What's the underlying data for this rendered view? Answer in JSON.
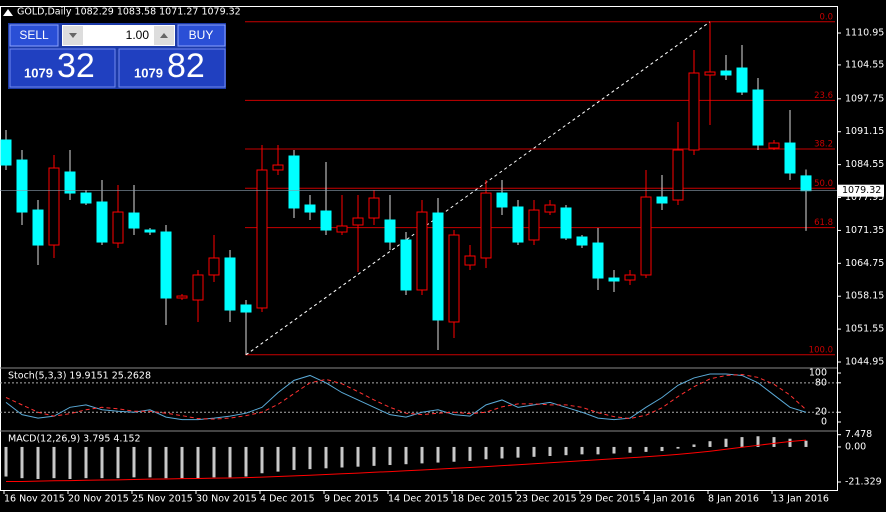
{
  "chart_data": [
    {
      "type": "candlestick",
      "title": "GOLD,Daily  1082.29 1083.58 1071.27 1079.32",
      "categories": [
        "16 Nov 2015",
        null,
        null,
        null,
        "20 Nov 2015",
        null,
        null,
        null,
        "25 Nov 2015",
        null,
        null,
        null,
        "30 Nov 2015",
        null,
        null,
        null,
        "4 Dec 2015",
        null,
        null,
        null,
        "9 Dec 2015",
        null,
        null,
        null,
        "14 Dec 2015",
        null,
        null,
        null,
        "18 Dec 2015",
        null,
        null,
        null,
        "23 Dec 2015",
        null,
        null,
        null,
        "29 Dec 2015",
        null,
        null,
        null,
        "4 Jan 2016",
        null,
        null,
        null,
        "8 Jan 2016",
        null,
        null,
        null,
        "13 Jan 2016",
        null,
        null
      ],
      "open": [
        1089.49,
        1085.47,
        1075.44,
        1068.42,
        1083.07,
        1078.85,
        1077.05,
        1068.82,
        1074.84,
        1071.43,
        1071.03,
        1057.79,
        1057.39,
        1062.41,
        1065.82,
        1056.39,
        1055.79,
        1083.47,
        1086.28,
        1076.45,
        1075.24,
        1071.03,
        1072.44,
        1073.84,
        1073.44,
        1069.43,
        1059.4,
        1074.84,
        1052.98,
        1064.41,
        1065.82,
        1078.85,
        1076.05,
        1069.43,
        1075.04,
        1075.85,
        1070.03,
        1068.82,
        1061.8,
        1061.4,
        1062.41,
        1078.05,
        1077.45,
        1087.48,
        1102.53,
        1103.33,
        1103.93,
        1099.52,
        1087.88,
        1088.88,
        1082.29
      ],
      "high": [
        1091.49,
        1087.48,
        1077.45,
        1086.48,
        1087.48,
        1079.46,
        1081.46,
        1080.46,
        1080.46,
        1071.83,
        1072.44,
        1058.6,
        1063.41,
        1070.43,
        1067.42,
        1057.39,
        1088.48,
        1088.48,
        1087.48,
        1078.45,
        1085.07,
        1078.45,
        1078.45,
        1079.46,
        1078.45,
        1071.03,
        1077.45,
        1077.85,
        1071.43,
        1068.42,
        1081.46,
        1081.46,
        1077.45,
        1077.45,
        1077.45,
        1076.45,
        1070.43,
        1071.83,
        1063.41,
        1063.41,
        1083.47,
        1082.46,
        1093.1,
        1107.54,
        1113.2,
        1106.54,
        1108.54,
        1101.92,
        1089.49,
        1095.5,
        1083.58
      ],
      "low": [
        1083.47,
        1072.44,
        1064.41,
        1065.82,
        1077.45,
        1076.45,
        1068.42,
        1067.82,
        1070.43,
        1070.43,
        1052.38,
        1057.39,
        1052.98,
        1061.0,
        1052.98,
        1046.4,
        1054.98,
        1082.46,
        1073.84,
        1073.44,
        1070.43,
        1070.43,
        1063.01,
        1072.44,
        1067.42,
        1058.39,
        1058.39,
        1047.36,
        1049.77,
        1063.41,
        1063.81,
        1074.44,
        1068.42,
        1068.42,
        1074.44,
        1069.43,
        1067.82,
        1059.4,
        1058.99,
        1060.4,
        1061.8,
        1075.44,
        1076.45,
        1086.48,
        1092.49,
        1101.52,
        1098.51,
        1087.48,
        1087.48,
        1081.46,
        1071.27
      ],
      "close": [
        1084.47,
        1075.04,
        1068.42,
        1083.87,
        1078.85,
        1076.85,
        1069.02,
        1075.04,
        1071.83,
        1071.03,
        1057.79,
        1058.19,
        1062.41,
        1065.82,
        1055.38,
        1054.98,
        1083.47,
        1084.47,
        1075.85,
        1075.04,
        1071.43,
        1072.24,
        1073.84,
        1077.85,
        1069.02,
        1059.4,
        1075.04,
        1053.38,
        1070.43,
        1066.22,
        1078.85,
        1076.05,
        1069.02,
        1075.44,
        1076.45,
        1069.83,
        1068.42,
        1061.8,
        1061.2,
        1062.41,
        1078.05,
        1076.85,
        1087.48,
        1102.93,
        1103.13,
        1102.53,
        1099.11,
        1088.48,
        1088.88,
        1082.87,
        1079.32
      ],
      "up_color": "#ff0000",
      "down_color": "#00ffff",
      "ylim": [
        1043.95,
        1115.97
      ],
      "yticks": [
        1110.95,
        1104.55,
        1097.75,
        1091.15,
        1084.55,
        1077.95,
        1071.35,
        1064.75,
        1058.15,
        1051.55,
        1044.95
      ],
      "fib_color": "#c80000",
      "fib_levels": [
        {
          "label": "0.0",
          "value": 1113.2
        },
        {
          "label": "23.6",
          "value": 1097.44
        },
        {
          "label": "38.2",
          "value": 1087.68
        },
        {
          "label": "50.0",
          "value": 1079.8
        },
        {
          "label": "61.8",
          "value": 1071.92
        },
        {
          "label": "100.0",
          "value": 1046.4
        }
      ]
    },
    {
      "type": "line",
      "title": "Stoch(5,3,3) 19.9151 25.2628",
      "ylim": [
        -16.3,
        108.2
      ],
      "yticks": [
        0,
        20,
        80,
        100
      ],
      "levels": [
        20,
        80
      ],
      "series": [
        {
          "color": "#5aa9d6",
          "values": [
            40,
            15,
            8,
            12,
            30,
            35,
            25,
            22,
            20,
            25,
            10,
            5,
            5,
            8,
            12,
            18,
            30,
            60,
            85,
            95,
            80,
            60,
            45,
            30,
            15,
            10,
            20,
            25,
            15,
            12,
            35,
            45,
            30,
            35,
            40,
            30,
            20,
            8,
            5,
            8,
            30,
            50,
            75,
            90,
            98,
            98,
            95,
            80,
            55,
            30,
            19.9151
          ]
        },
        {
          "color": "#ff3030",
          "dash": true,
          "values": [
            50,
            35,
            20,
            12,
            17,
            25,
            30,
            27,
            22,
            22,
            18,
            13,
            7,
            6,
            8,
            13,
            20,
            36,
            58,
            80,
            87,
            78,
            62,
            45,
            30,
            18,
            15,
            18,
            20,
            17,
            20,
            31,
            37,
            37,
            35,
            35,
            30,
            19,
            11,
            7,
            14,
            29,
            52,
            72,
            88,
            95,
            97,
            91,
            77,
            55,
            25.2628
          ]
        }
      ]
    },
    {
      "type": "bar",
      "title": "MACD(12,26,9) 3.795 4.152",
      "ylim": [
        -26.2,
        9.1
      ],
      "yticks": [
        7.478,
        {
          "value": 0,
          "label": "0.00"
        },
        -21.329
      ],
      "color": "#c8c8c8",
      "values": [
        -18,
        -19,
        -19.5,
        -19,
        -19.5,
        -19,
        -19,
        -19,
        -18.5,
        -18.5,
        -19,
        -19,
        -19,
        -18.5,
        -18.5,
        -18,
        -16,
        -15,
        -14,
        -13.5,
        -13,
        -12.5,
        -12,
        -11.5,
        -11,
        -10.5,
        -10,
        -9.5,
        -9,
        -8.5,
        -7.5,
        -7,
        -6.5,
        -6,
        -5.5,
        -5,
        -4.5,
        -4.5,
        -4,
        -3.5,
        -3,
        -2.5,
        -1,
        1.5,
        3.5,
        5,
        6,
        6.5,
        6,
        5,
        3.795
      ],
      "signal": {
        "color": "#ff0000",
        "values": [
          -21,
          -21,
          -20.8,
          -20.6,
          -20.5,
          -20.3,
          -20.1,
          -20,
          -19.8,
          -19.6,
          -19.5,
          -19.3,
          -19.2,
          -19,
          -18.9,
          -18.7,
          -18.4,
          -18,
          -17.6,
          -17.2,
          -16.8,
          -16.3,
          -15.9,
          -15.4,
          -15,
          -14.5,
          -14,
          -13.5,
          -13,
          -12.5,
          -12,
          -11.4,
          -10.8,
          -10.2,
          -9.6,
          -9,
          -8.4,
          -7.8,
          -7.2,
          -6.6,
          -6,
          -5.3,
          -4.5,
          -3.6,
          -2.6,
          -1.4,
          -0.2,
          1,
          2.2,
          3.3,
          4.152
        ]
      }
    }
  ],
  "trade_panel": {
    "sell": "SELL",
    "buy": "BUY",
    "lots": "1.00",
    "bid": [
      "1079",
      "32"
    ],
    "ask": [
      "1079",
      "82"
    ]
  }
}
